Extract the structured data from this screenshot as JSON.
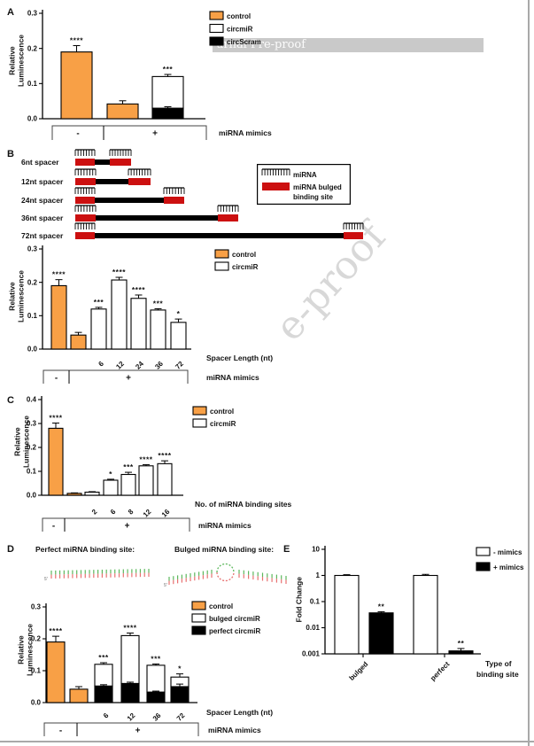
{
  "page": {
    "banner_text": "urnal Pre-proof",
    "watermark_text": "e-proof",
    "colors": {
      "orange": "#F8A046",
      "red": "#CC1010",
      "black": "#000000",
      "white": "#FFFFFF",
      "banner_gray": "#C9C9C9",
      "border_gray": "#A9A9A9",
      "watermark_gray": "#D8D8D8",
      "duplex_green": "#5CB85C",
      "duplex_red": "#E87070"
    }
  },
  "panels": {
    "a": {
      "label": "A",
      "ylabel_lines": [
        "Relative",
        "Luminescence"
      ]
    },
    "b": {
      "label": "B",
      "ylabel_lines": [
        "Relative",
        "Luminescence"
      ],
      "schematic": {
        "rows": [
          {
            "label": "6nt spacer",
            "spacer_nt": 6
          },
          {
            "label": "12nt spacer",
            "spacer_nt": 12
          },
          {
            "label": "24nt spacer",
            "spacer_nt": 24
          },
          {
            "label": "36nt spacer",
            "spacer_nt": 36
          },
          {
            "label": "72nt spacer",
            "spacer_nt": 72
          }
        ],
        "legend": {
          "mirna_label": "miRNA",
          "bulged_label_lines": [
            "miRNA bulged",
            "binding site"
          ]
        }
      }
    },
    "c": {
      "label": "C",
      "ylabel_lines": [
        "Relative",
        "Luminescence"
      ]
    },
    "d": {
      "label": "D",
      "ylabel_lines": [
        "Relative",
        "Luminescence"
      ],
      "header_perfect": "Perfect miRNA binding site:",
      "header_bulged": "Bulged miRNA binding site:"
    },
    "e": {
      "label": "E",
      "ylabel_lines": [
        "Fold Change"
      ]
    }
  },
  "chart_data": [
    {
      "id": "A",
      "type": "bar",
      "ylabel": "Relative Luminescence",
      "ymax": 0.3,
      "yticks": [
        "0.0",
        "0.1",
        "0.2",
        "0.3"
      ],
      "xlabel": null,
      "group_axis_label": "miRNA mimics",
      "groups": [
        {
          "label": "-"
        },
        {
          "label": "+"
        }
      ],
      "legend": [
        {
          "label": "control",
          "series": "control",
          "color": "#F8A046"
        },
        {
          "label": "circmiR",
          "series": "circmiR",
          "color": "#FFFFFF"
        },
        {
          "label": "circScram",
          "series": "circScram",
          "color": "#000000"
        }
      ],
      "bars": [
        {
          "segments": [
            {
              "series": "control",
              "value": 0.19,
              "err": 0.018
            }
          ],
          "sig": "****"
        },
        {
          "segments": [
            {
              "series": "control",
              "value": 0.042,
              "err": 0.009
            }
          ]
        },
        {
          "segments": [
            {
              "series": "circScram",
              "value": 0.03,
              "err": 0.004
            },
            {
              "series": "circmiR",
              "value": 0.09,
              "err": 0.006
            }
          ],
          "sig": "***"
        }
      ]
    },
    {
      "id": "B",
      "type": "bar",
      "ylabel": "Relative Luminescence",
      "ymax": 0.3,
      "yticks": [
        "0.0",
        "0.1",
        "0.2",
        "0.3"
      ],
      "xlabel": "Spacer Length (nt)",
      "group_axis_label": "miRNA mimics",
      "groups": [
        {
          "label": "-"
        },
        {
          "label": "+"
        }
      ],
      "legend": [
        {
          "label": "control",
          "series": "control",
          "color": "#F8A046"
        },
        {
          "label": "circmiR",
          "series": "circmiR",
          "color": "#FFFFFF"
        }
      ],
      "bars": [
        {
          "segments": [
            {
              "series": "control",
              "value": 0.19,
              "err": 0.018
            }
          ],
          "sig": "****"
        },
        {
          "segments": [
            {
              "series": "control",
              "value": 0.042,
              "err": 0.008
            }
          ]
        },
        {
          "x": "6",
          "segments": [
            {
              "series": "circmiR",
              "value": 0.12,
              "err": 0.005
            }
          ],
          "sig": "***"
        },
        {
          "x": "12",
          "segments": [
            {
              "series": "circmiR",
              "value": 0.207,
              "err": 0.008
            }
          ],
          "sig": "****"
        },
        {
          "x": "24",
          "segments": [
            {
              "series": "circmiR",
              "value": 0.152,
              "err": 0.01
            }
          ],
          "sig": "****"
        },
        {
          "x": "36",
          "segments": [
            {
              "series": "circmiR",
              "value": 0.117,
              "err": 0.004
            }
          ],
          "sig": "***"
        },
        {
          "x": "72",
          "segments": [
            {
              "series": "circmiR",
              "value": 0.08,
              "err": 0.01
            }
          ],
          "sig": "*"
        }
      ]
    },
    {
      "id": "C",
      "type": "bar",
      "ylabel": "Relative Luminescence",
      "ymax": 0.4,
      "yticks": [
        "0.0",
        "0.1",
        "0.2",
        "0.3",
        "0.4"
      ],
      "xlabel": "No. of miRNA binding sites",
      "group_axis_label": "miRNA mimics",
      "groups": [
        {
          "label": "-"
        },
        {
          "label": "+"
        }
      ],
      "legend": [
        {
          "label": "control",
          "series": "control",
          "color": "#F8A046"
        },
        {
          "label": "circmiR",
          "series": "circmiR",
          "color": "#FFFFFF"
        }
      ],
      "bars": [
        {
          "segments": [
            {
              "series": "control",
              "value": 0.28,
              "err": 0.022
            }
          ],
          "sig": "****"
        },
        {
          "segments": [
            {
              "series": "control",
              "value": 0.008,
              "err": 0.002
            }
          ]
        },
        {
          "x": "2",
          "segments": [
            {
              "series": "circmiR",
              "value": 0.013,
              "err": 0.002
            }
          ]
        },
        {
          "x": "6",
          "segments": [
            {
              "series": "circmiR",
              "value": 0.063,
              "err": 0.004
            }
          ],
          "sig": "*"
        },
        {
          "x": "8",
          "segments": [
            {
              "series": "circmiR",
              "value": 0.087,
              "err": 0.009
            }
          ],
          "sig": "***"
        },
        {
          "x": "12",
          "segments": [
            {
              "series": "circmiR",
              "value": 0.123,
              "err": 0.005
            }
          ],
          "sig": "****"
        },
        {
          "x": "16",
          "segments": [
            {
              "series": "circmiR",
              "value": 0.132,
              "err": 0.012
            }
          ],
          "sig": "****"
        }
      ]
    },
    {
      "id": "D",
      "type": "bar",
      "ylabel": "Relative Luminescence",
      "ymax": 0.3,
      "yticks": [
        "0.0",
        "0.1",
        "0.2",
        "0.3"
      ],
      "xlabel": "Spacer Length (nt)",
      "group_axis_label": "miRNA mimics",
      "groups": [
        {
          "label": "-"
        },
        {
          "label": "+"
        }
      ],
      "legend": [
        {
          "label": "control",
          "series": "control",
          "color": "#F8A046"
        },
        {
          "label": "bulged circmiR",
          "series": "bulged circmiR",
          "color": "#FFFFFF"
        },
        {
          "label": "perfect circmiR",
          "series": "perfect circmiR",
          "color": "#000000"
        }
      ],
      "bars": [
        {
          "segments": [
            {
              "series": "control",
              "value": 0.19,
              "err": 0.018
            }
          ],
          "sig": "****"
        },
        {
          "segments": [
            {
              "series": "control",
              "value": 0.042,
              "err": 0.008
            }
          ]
        },
        {
          "x": "6",
          "segments": [
            {
              "series": "perfect circmiR",
              "value": 0.052,
              "err": 0.004
            },
            {
              "series": "bulged circmiR",
              "value": 0.068,
              "err": 0.005
            }
          ],
          "sig": "***"
        },
        {
          "x": "12",
          "segments": [
            {
              "series": "perfect circmiR",
              "value": 0.06,
              "err": 0.004
            },
            {
              "series": "bulged circmiR",
              "value": 0.15,
              "err": 0.008
            }
          ],
          "sig": "****"
        },
        {
          "x": "36",
          "segments": [
            {
              "series": "perfect circmiR",
              "value": 0.033,
              "err": 0.003
            },
            {
              "series": "bulged circmiR",
              "value": 0.084,
              "err": 0.004
            }
          ],
          "sig": "***"
        },
        {
          "x": "72",
          "segments": [
            {
              "series": "perfect circmiR",
              "value": 0.05,
              "err": 0.008
            },
            {
              "series": "bulged circmiR",
              "value": 0.03,
              "err": 0.01
            }
          ],
          "sig": "*"
        }
      ]
    },
    {
      "id": "E",
      "type": "bar-log",
      "ylabel": "Fold Change",
      "ymin": 0.001,
      "ymax": 10,
      "yticks": [
        "10",
        "1",
        "0.1",
        "0.01",
        "0.001"
      ],
      "xlabel_lines": [
        "Type of",
        "binding site"
      ],
      "group_labels": [
        "bulged",
        "perfect"
      ],
      "legend": [
        {
          "label": "- mimics",
          "series": "- mimics",
          "color": "#FFFFFF"
        },
        {
          "label": "+ mimics",
          "series": "+ mimics",
          "color": "#000000"
        }
      ],
      "bars": [
        {
          "group": "bulged",
          "series": "- mimics",
          "value": 1.0,
          "err": 0.07
        },
        {
          "group": "bulged",
          "series": "+ mimics",
          "value": 0.037,
          "err": 0.004,
          "sig": "**"
        },
        {
          "group": "perfect",
          "series": "- mimics",
          "value": 1.0,
          "err": 0.1
        },
        {
          "group": "perfect",
          "series": "+ mimics",
          "value": 0.0013,
          "err": 0.0003,
          "sig": "**"
        }
      ]
    }
  ]
}
